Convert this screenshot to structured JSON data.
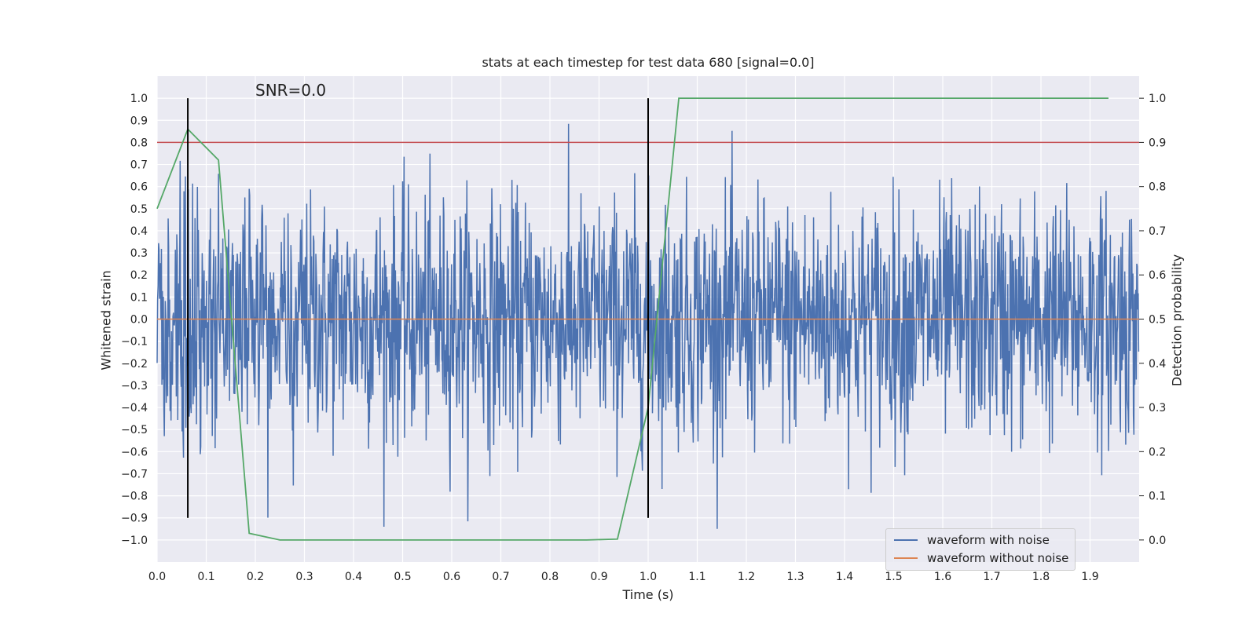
{
  "chart_data": {
    "type": "line",
    "title": "stats at each timestep for test data 680 [signal=0.0]",
    "annotation": "SNR=0.0",
    "xlabel": "Time (s)",
    "ylabel_left": "Whitened strain",
    "ylabel_right": "Detection probability",
    "xlim": [
      0.0,
      2.0
    ],
    "ylim_left": [
      -1.1,
      1.1
    ],
    "ylim_right": [
      -0.05,
      1.05
    ],
    "x_ticks": [
      "0.0",
      "0.1",
      "0.2",
      "0.3",
      "0.4",
      "0.5",
      "0.6",
      "0.7",
      "0.8",
      "0.9",
      "1.0",
      "1.1",
      "1.2",
      "1.3",
      "1.4",
      "1.5",
      "1.6",
      "1.7",
      "1.8",
      "1.9"
    ],
    "y_left_ticks": [
      "1.0",
      "0.9",
      "0.8",
      "0.7",
      "0.6",
      "0.5",
      "0.4",
      "0.3",
      "0.2",
      "0.1",
      "0.0",
      "−0.1",
      "−0.2",
      "−0.3",
      "−0.4",
      "−0.5",
      "−0.6",
      "−0.7",
      "−0.8",
      "−0.9",
      "−1.0"
    ],
    "y_right_ticks": [
      "1.0",
      "0.9",
      "0.8",
      "0.7",
      "0.6",
      "0.5",
      "0.4",
      "0.3",
      "0.2",
      "0.1",
      "0.0"
    ],
    "grid": true,
    "legend_position": "bottom-right",
    "series": [
      {
        "name": "waveform with noise",
        "axis": "left",
        "color": "#4c72b0",
        "description_of_values": "dense random noise",
        "num_points": 2048,
        "range_approx": [
          -0.95,
          1.0
        ]
      },
      {
        "name": "waveform without noise",
        "axis": "left",
        "color": "#dd8452",
        "x": [
          0.0,
          2.0
        ],
        "y": [
          0.0,
          0.0
        ]
      },
      {
        "axis": "right",
        "color": "#55a868",
        "x": [
          0.0,
          0.0625,
          0.125,
          0.1875,
          0.25,
          0.3125,
          0.375,
          0.4375,
          0.5,
          0.5625,
          0.625,
          0.6875,
          0.75,
          0.8125,
          0.875,
          0.9375,
          1.0,
          1.0625,
          1.125,
          1.1875,
          1.25,
          1.3125,
          1.375,
          1.4375,
          1.5,
          1.5625,
          1.625,
          1.6875,
          1.75,
          1.8125,
          1.875,
          1.9375
        ],
        "y": [
          0.75,
          0.93,
          0.86,
          0.015,
          0.0,
          0.0,
          0.0,
          0.0,
          0.0,
          0.0,
          0.0,
          0.0,
          0.0,
          0.0,
          0.0,
          0.002,
          0.3,
          1.0,
          1.0,
          1.0,
          1.0,
          1.0,
          1.0,
          1.0,
          1.0,
          1.0,
          1.0,
          1.0,
          1.0,
          1.0,
          1.0,
          1.0
        ]
      }
    ],
    "threshold_line": {
      "axis": "right",
      "y": 0.9,
      "color": "#c44e52"
    },
    "vertical_markers": {
      "x": [
        0.0625,
        1.0
      ],
      "y_range": [
        -0.9,
        1.0
      ],
      "color": "#000000"
    }
  }
}
